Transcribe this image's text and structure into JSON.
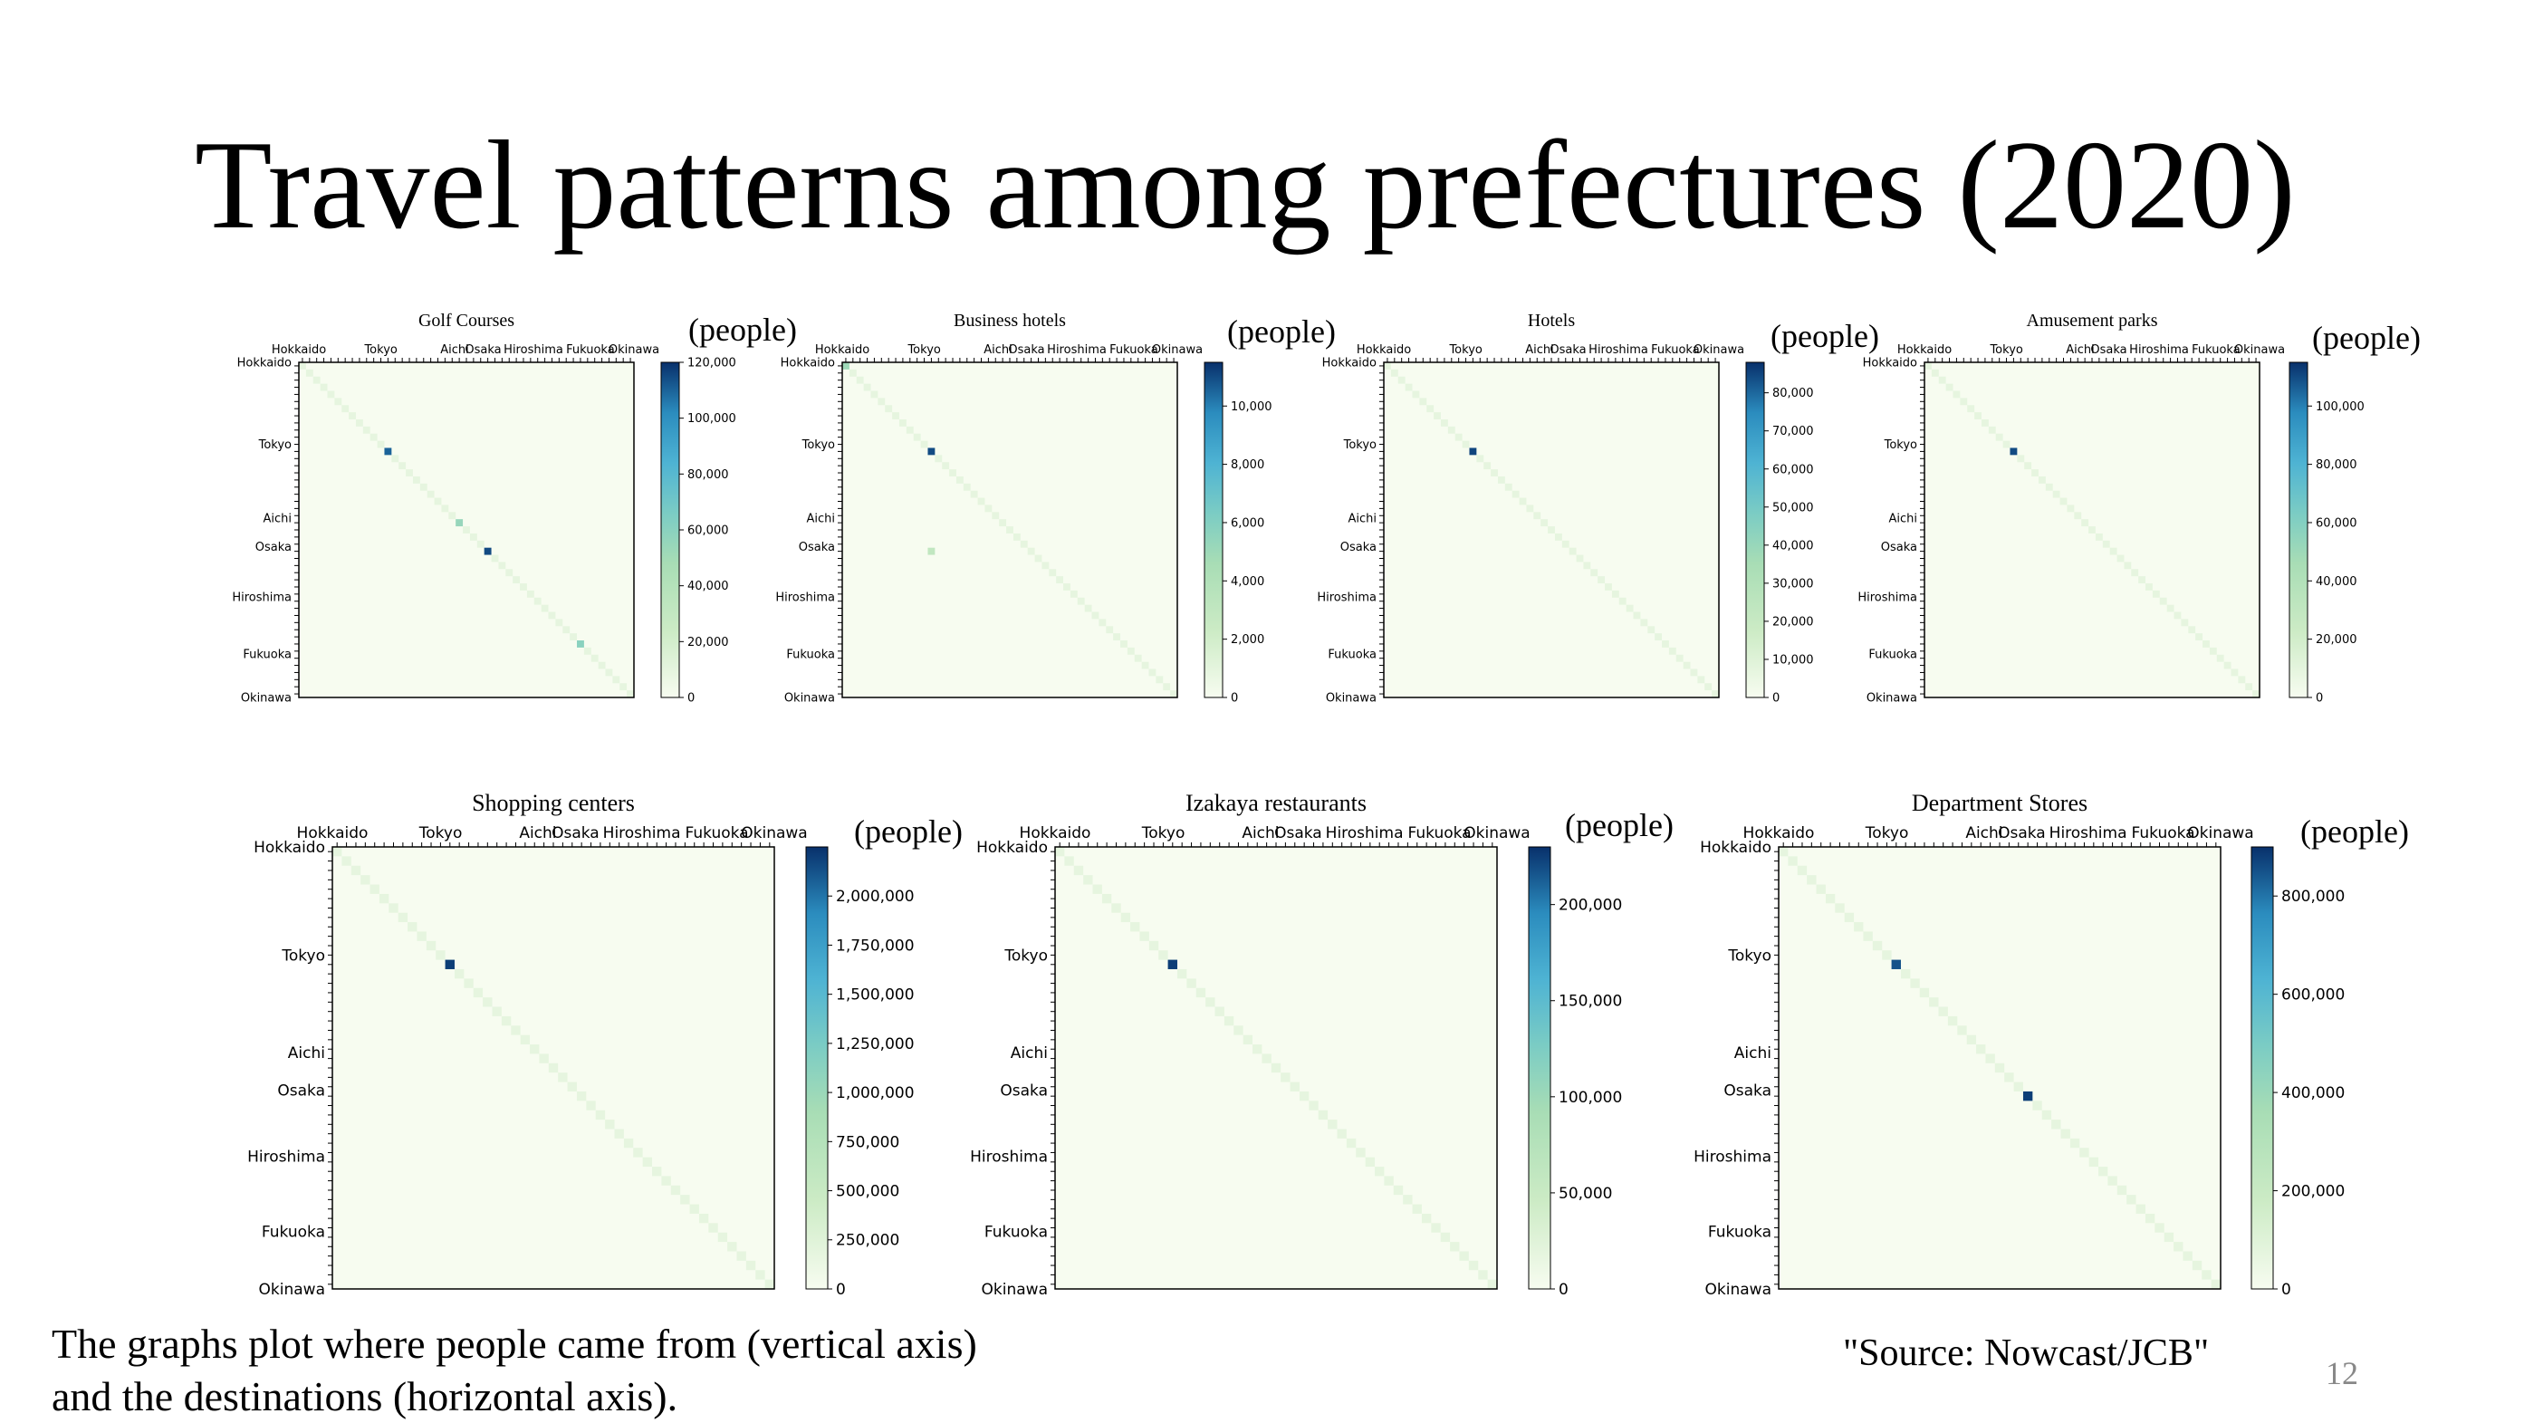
{
  "title": "Travel patterns among prefectures (2020)",
  "footnote": {
    "line1": "The graphs plot where people came from (vertical axis)",
    "line2": "and the destinations (horizontal axis)."
  },
  "source": "\"Source: Nowcast/JCB\"",
  "page_number": "12",
  "unit_label": "(people)",
  "colors": {
    "low": "#f7fcf0",
    "mid": "#7bccc4",
    "high": "#08306b"
  },
  "chart_data": [
    {
      "type": "heatmap",
      "title": "Golf Courses",
      "categories": [
        "Hokkaido",
        "Tokyo",
        "Aichi",
        "Osaka",
        "Hiroshima",
        "Fukuoka",
        "Okinawa"
      ],
      "colorbar": {
        "min": 0,
        "max": 120000,
        "ticks": [
          "0",
          "20,000",
          "40,000",
          "60,000",
          "80,000",
          "100,000",
          "120,000"
        ]
      },
      "hotspots": [
        {
          "x": "Tokyo",
          "y": "Tokyo",
          "value": 110000
        },
        {
          "x": "Osaka",
          "y": "Osaka",
          "value": 115000
        },
        {
          "x": "Aichi",
          "y": "Aichi",
          "value": 55000
        },
        {
          "x": "Fukuoka",
          "y": "Fukuoka",
          "value": 60000
        }
      ]
    },
    {
      "type": "heatmap",
      "title": "Business hotels",
      "categories": [
        "Hokkaido",
        "Tokyo",
        "Aichi",
        "Osaka",
        "Hiroshima",
        "Fukuoka",
        "Okinawa"
      ],
      "colorbar": {
        "min": 0,
        "max": 11500,
        "ticks": [
          "0",
          "2,000",
          "4,000",
          "6,000",
          "8,000",
          "10,000"
        ]
      },
      "hotspots": [
        {
          "x": "Tokyo",
          "y": "Tokyo",
          "value": 11000
        },
        {
          "x": "Hokkaido",
          "y": "Hokkaido",
          "value": 5000
        },
        {
          "x": "Tokyo",
          "y": "Osaka",
          "value": 3000
        }
      ]
    },
    {
      "type": "heatmap",
      "title": "Hotels",
      "categories": [
        "Hokkaido",
        "Tokyo",
        "Aichi",
        "Osaka",
        "Hiroshima",
        "Fukuoka",
        "Okinawa"
      ],
      "colorbar": {
        "min": 0,
        "max": 88000,
        "ticks": [
          "0",
          "10,000",
          "20,000",
          "30,000",
          "40,000",
          "50,000",
          "60,000",
          "70,000",
          "80,000"
        ]
      },
      "hotspots": [
        {
          "x": "Tokyo",
          "y": "Tokyo",
          "value": 85000
        }
      ]
    },
    {
      "type": "heatmap",
      "title": "Amusement parks",
      "categories": [
        "Hokkaido",
        "Tokyo",
        "Aichi",
        "Osaka",
        "Hiroshima",
        "Fukuoka",
        "Okinawa"
      ],
      "colorbar": {
        "min": 0,
        "max": 115000,
        "ticks": [
          "0",
          "20,000",
          "40,000",
          "60,000",
          "80,000",
          "100,000"
        ]
      },
      "hotspots": [
        {
          "x": "Tokyo",
          "y": "Tokyo",
          "value": 110000
        }
      ]
    },
    {
      "type": "heatmap",
      "title": "Shopping centers",
      "categories": [
        "Hokkaido",
        "Tokyo",
        "Aichi",
        "Osaka",
        "Hiroshima",
        "Fukuoka",
        "Okinawa"
      ],
      "colorbar": {
        "min": 0,
        "max": 2250000,
        "ticks": [
          "0",
          "250,000",
          "500,000",
          "750,000",
          "1,000,000",
          "1,250,000",
          "1,500,000",
          "1,750,000",
          "2,000,000"
        ]
      },
      "hotspots": [
        {
          "x": "Tokyo",
          "y": "Tokyo",
          "value": 2200000
        }
      ]
    },
    {
      "type": "heatmap",
      "title": "Izakaya restaurants",
      "categories": [
        "Hokkaido",
        "Tokyo",
        "Aichi",
        "Osaka",
        "Hiroshima",
        "Fukuoka",
        "Okinawa"
      ],
      "colorbar": {
        "min": 0,
        "max": 230000,
        "ticks": [
          "0",
          "50,000",
          "100,000",
          "150,000",
          "200,000"
        ]
      },
      "hotspots": [
        {
          "x": "Tokyo",
          "y": "Tokyo",
          "value": 225000
        }
      ]
    },
    {
      "type": "heatmap",
      "title": "Department Stores",
      "categories": [
        "Hokkaido",
        "Tokyo",
        "Aichi",
        "Osaka",
        "Hiroshima",
        "Fukuoka",
        "Okinawa"
      ],
      "colorbar": {
        "min": 0,
        "max": 900000,
        "ticks": [
          "0",
          "200,000",
          "400,000",
          "600,000",
          "800,000"
        ]
      },
      "hotspots": [
        {
          "x": "Tokyo",
          "y": "Tokyo",
          "value": 850000
        },
        {
          "x": "Osaka",
          "y": "Osaka",
          "value": 880000
        }
      ]
    }
  ]
}
